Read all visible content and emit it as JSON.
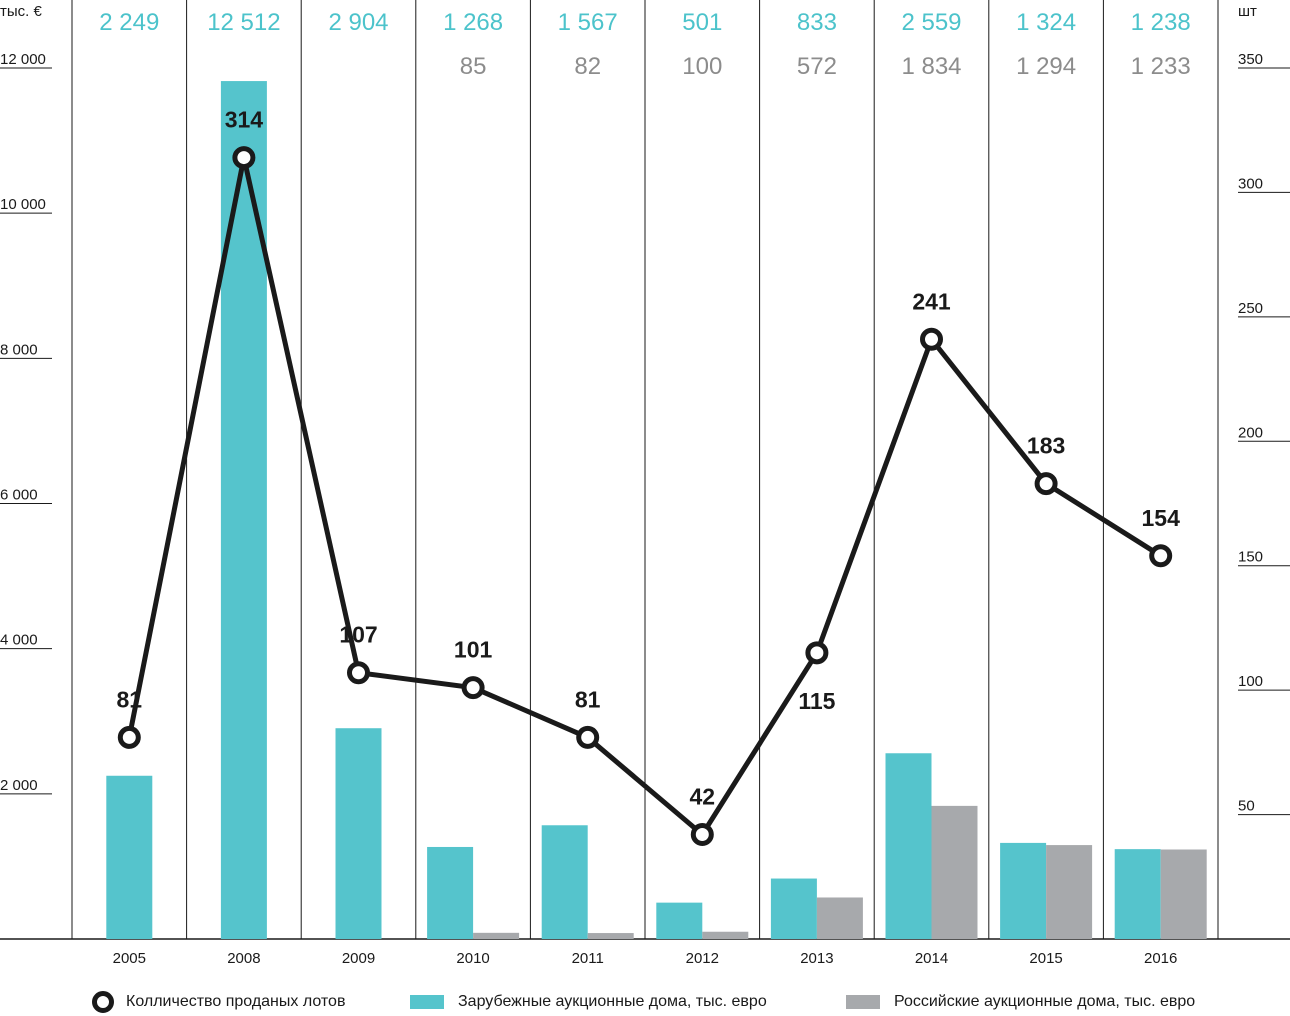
{
  "colors": {
    "foreign": "#55c4cc",
    "russian": "#a7a9ac",
    "line": "#1a1a1a",
    "grid": "#1a1a1a",
    "foreign_label": "#4cc3cb",
    "russian_label": "#8c8c8c"
  },
  "chart_data": {
    "type": "bar",
    "categories": [
      "2005",
      "2008",
      "2009",
      "2010",
      "2011",
      "2012",
      "2013",
      "2014",
      "2015",
      "2016"
    ],
    "left_axis": {
      "unit_label": "тыс. €",
      "ylim": [
        0,
        12000
      ],
      "ticks": [
        {
          "value": 2000,
          "label": "2 000"
        },
        {
          "value": 4000,
          "label": "4 000"
        },
        {
          "value": 6000,
          "label": "6 000"
        },
        {
          "value": 8000,
          "label": "8 000"
        },
        {
          "value": 10000,
          "label": "10 000"
        },
        {
          "value": 12000,
          "label": "12 000"
        }
      ]
    },
    "right_axis": {
      "unit_label": "шт",
      "ylim": [
        0,
        350
      ],
      "ticks": [
        {
          "value": 50,
          "label": "50"
        },
        {
          "value": 100,
          "label": "100"
        },
        {
          "value": 150,
          "label": "150"
        },
        {
          "value": 200,
          "label": "200"
        },
        {
          "value": 250,
          "label": "250"
        },
        {
          "value": 300,
          "label": "300"
        },
        {
          "value": 350,
          "label": "350"
        }
      ]
    },
    "series": [
      {
        "name": "Зарубежные аукционные дома, тыс. евро",
        "type": "bar",
        "axis": "left",
        "values": [
          2249,
          12512,
          2904,
          1268,
          1567,
          501,
          833,
          2559,
          1324,
          1238
        ],
        "labels": [
          "2 249",
          "12 512",
          "2 904",
          "1 268",
          "1 567",
          "501",
          "833",
          "2 559",
          "1 324",
          "1 238"
        ]
      },
      {
        "name": "Российские аукционные дома, тыс. евро",
        "type": "bar",
        "axis": "left",
        "values": [
          null,
          null,
          null,
          85,
          82,
          100,
          572,
          1834,
          1294,
          1233
        ],
        "labels": [
          "",
          "",
          "",
          "85",
          "82",
          "100",
          "572",
          "1 834",
          "1 294",
          "1 233"
        ]
      },
      {
        "name": "Колличество проданых лотов",
        "type": "line",
        "axis": "right",
        "values": [
          81,
          314,
          107,
          101,
          81,
          42,
          115,
          241,
          183,
          154
        ],
        "labels": [
          "81",
          "314",
          "107",
          "101",
          "81",
          "42",
          "115",
          "241",
          "183",
          "154"
        ]
      }
    ],
    "legend_position": "bottom",
    "grid": "vertical"
  },
  "legend": {
    "line": "Колличество проданых лотов",
    "foreign": "Зарубежные аукционные дома, тыс. евро",
    "russian": "Российские аукционные дома, тыс. евро"
  }
}
